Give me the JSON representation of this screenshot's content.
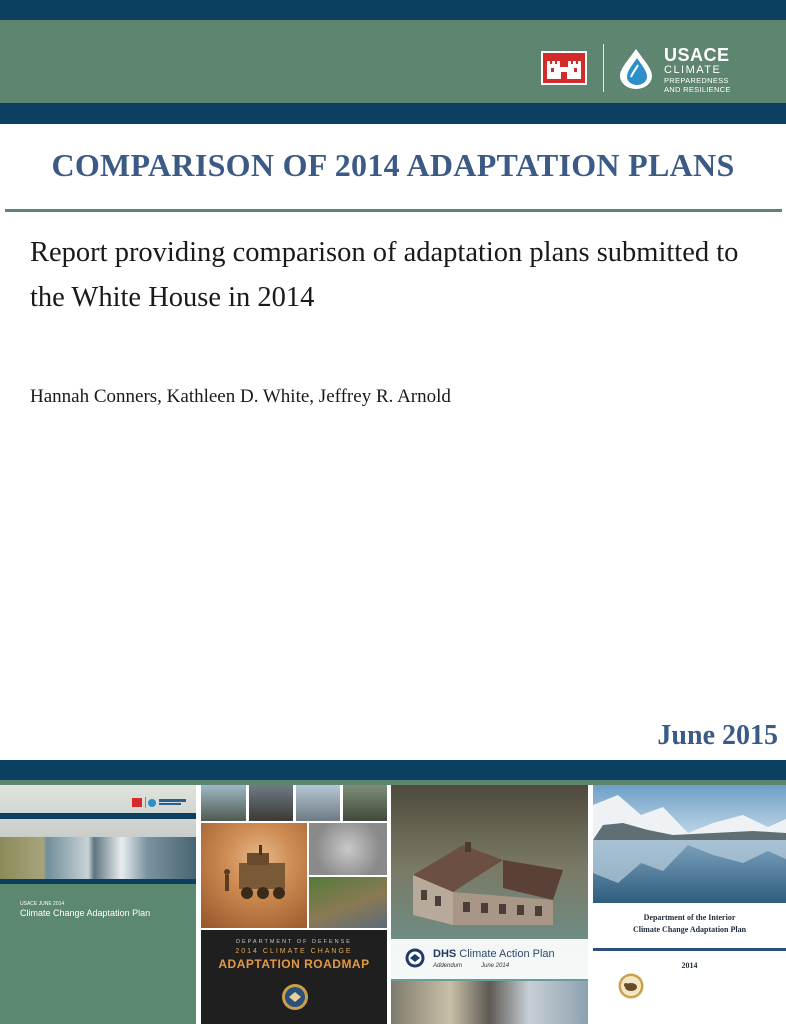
{
  "header": {
    "logo": {
      "line1": "USACE",
      "line2": "CLIMATE",
      "line3": "PREPAREDNESS",
      "line4": "AND RESILIENCE"
    }
  },
  "title": "COMPARISON OF 2014 ADAPTATION PLANS",
  "subtitle": "Report providing comparison of adaptation plans submitted to the White House in 2014",
  "authors": "Hannah Conners, Kathleen D. White, Jeffrey R. Arnold",
  "date": "June 2015",
  "colors": {
    "navy": "#0c4060",
    "green": "#5e8570",
    "title_blue": "#3b5a86"
  },
  "covers": [
    {
      "id": "usace",
      "small": "USACE JUNE 2014",
      "title": "Climate Change Adaptation Plan"
    },
    {
      "id": "dod",
      "line1": "DEPARTMENT OF DEFENSE",
      "line2": "2014 CLIMATE CHANGE",
      "line3": "ADAPTATION ROADMAP"
    },
    {
      "id": "dhs",
      "title_strong": "DHS",
      "title_rest": " Climate Action Plan",
      "addendum": "Addendum",
      "date": "June 2014"
    },
    {
      "id": "doi",
      "line1": "Department of the Interior",
      "line2": "Climate Change Adaptation Plan",
      "year": "2014"
    }
  ]
}
